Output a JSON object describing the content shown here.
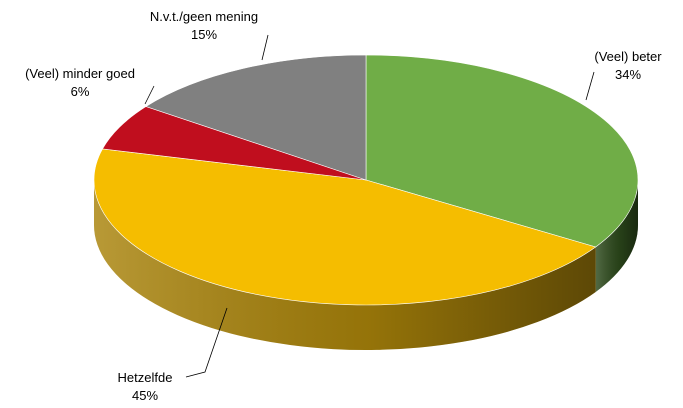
{
  "chart_data": {
    "type": "pie",
    "style": "3d",
    "title": "",
    "slices": [
      {
        "label": "(Veel) beter",
        "value": 34,
        "value_label": "34%",
        "color": "#70ad47",
        "side_color": "#2d4a1c"
      },
      {
        "label": "Hetzelfde",
        "value": 45,
        "value_label": "45%",
        "color": "#f5bd00",
        "side_color": "#a9830a"
      },
      {
        "label": "(Veel) minder goed",
        "value": 6,
        "value_label": "6%",
        "color": "#c00e1e",
        "side_color": "#7a0a12"
      },
      {
        "label": "N.v.t./geen mening",
        "value": 15,
        "value_label": "15%",
        "color": "#808080",
        "side_color": "#555555"
      }
    ],
    "legend": "none",
    "data_labels": "outside-with-leader-lines"
  }
}
